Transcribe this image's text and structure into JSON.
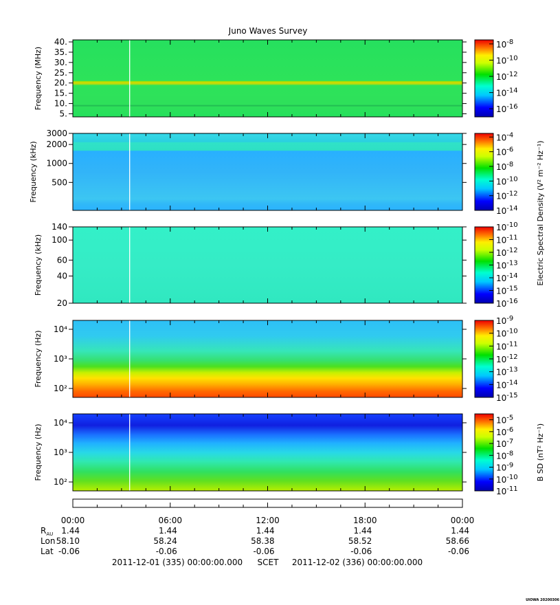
{
  "chart_data": {
    "type": "heatmap",
    "title": "Juno Waves Survey",
    "panels": [
      {
        "ylabel": "Frequency (MHz)",
        "yscale": "linear",
        "ylim": [
          3.5,
          41
        ],
        "yticks": [
          5,
          10,
          15,
          20,
          25,
          30,
          35,
          40
        ],
        "ytick_labels": [
          "5.",
          "10.",
          "15.",
          "20.",
          "25.",
          "30.",
          "35.",
          "40."
        ],
        "colorbar_label": "",
        "colorbar_log_range": [
          -17,
          -7.5
        ],
        "colorbar_exponents": [
          "-8",
          "-10",
          "-12",
          "-14",
          "-16"
        ],
        "colorbar_exponent_values": [
          -8,
          -10,
          -12,
          -14,
          -16
        ]
      },
      {
        "ylabel": "Frequency (kHz)",
        "yscale": "log",
        "ylim": [
          180,
          3000
        ],
        "yticks": [
          500,
          1000,
          2000,
          3000
        ],
        "ytick_labels": [
          "500",
          "1000",
          "2000",
          "3000"
        ],
        "colorbar_label": "Electric Spectral Density (V² m⁻² Hz⁻¹)",
        "colorbar_log_range": [
          -14,
          -3.5
        ],
        "colorbar_exponents": [
          "-4",
          "-6",
          "-8",
          "-10",
          "-12",
          "-14"
        ],
        "colorbar_exponent_values": [
          -4,
          -6,
          -8,
          -10,
          -12,
          -14
        ]
      },
      {
        "ylabel": "Frequency (kHz)",
        "yscale": "log",
        "ylim": [
          20,
          140
        ],
        "yticks": [
          20,
          40,
          60,
          100,
          140
        ],
        "ytick_labels": [
          "20",
          "40",
          "60",
          "100",
          "140"
        ],
        "colorbar_label": "",
        "colorbar_log_range": [
          -16,
          -10
        ],
        "colorbar_exponents": [
          "-10",
          "-11",
          "-12",
          "-13",
          "-14",
          "-15",
          "-16"
        ],
        "colorbar_exponent_values": [
          -10,
          -11,
          -12,
          -13,
          -14,
          -15,
          -16
        ]
      },
      {
        "ylabel": "Frequency (Hz)",
        "yscale": "log",
        "ylim": [
          50,
          20000
        ],
        "yticks": [
          100,
          1000,
          10000
        ],
        "ytick_labels": [
          "10²",
          "10³",
          "10⁴"
        ],
        "colorbar_label": "",
        "colorbar_log_range": [
          -15,
          -9
        ],
        "colorbar_exponents": [
          "-9",
          "-10",
          "-11",
          "-12",
          "-13",
          "-14",
          "-15"
        ],
        "colorbar_exponent_values": [
          -9,
          -10,
          -11,
          -12,
          -13,
          -14,
          -15
        ]
      },
      {
        "ylabel": "Frequency (Hz)",
        "yscale": "log",
        "ylim": [
          50,
          20000
        ],
        "yticks": [
          100,
          1000,
          10000
        ],
        "ytick_labels": [
          "10²",
          "10³",
          "10⁴"
        ],
        "colorbar_label": "B SD (nT² Hz⁻¹)",
        "colorbar_log_range": [
          -11,
          -4.5
        ],
        "colorbar_exponents": [
          "-5",
          "-6",
          "-7",
          "-8",
          "-9",
          "-10",
          "-11"
        ],
        "colorbar_exponent_values": [
          -5,
          -6,
          -7,
          -8,
          -9,
          -10,
          -11
        ]
      }
    ],
    "colorbar_base": "10",
    "xlim_hours": [
      0,
      24
    ],
    "x_tick_hours": [
      0,
      6,
      12,
      18,
      24
    ],
    "x_ticks": [
      "00:00",
      "06:00",
      "12:00",
      "18:00",
      "00:00"
    ],
    "ephemeris_rows": [
      {
        "label": "R",
        "sub": "AU",
        "values": [
          "1.44",
          "1.44",
          "1.44",
          "1.44",
          "1.44"
        ]
      },
      {
        "label": "Lon",
        "sub": "",
        "values": [
          "58.10",
          "58.24",
          "58.38",
          "58.52",
          "58.66"
        ]
      },
      {
        "label": "Lat",
        "sub": "",
        "values": [
          "-0.06",
          "-0.06",
          "-0.06",
          "-0.06",
          "-0.06"
        ]
      }
    ],
    "time_caption": {
      "start": "2011-12-01 (335) 00:00:00.000",
      "axis": "SCET",
      "end": "2011-12-02 (336) 00:00:00.000"
    },
    "data_gap_hour": 3.5,
    "stamp": "UIOWA 20200306"
  }
}
